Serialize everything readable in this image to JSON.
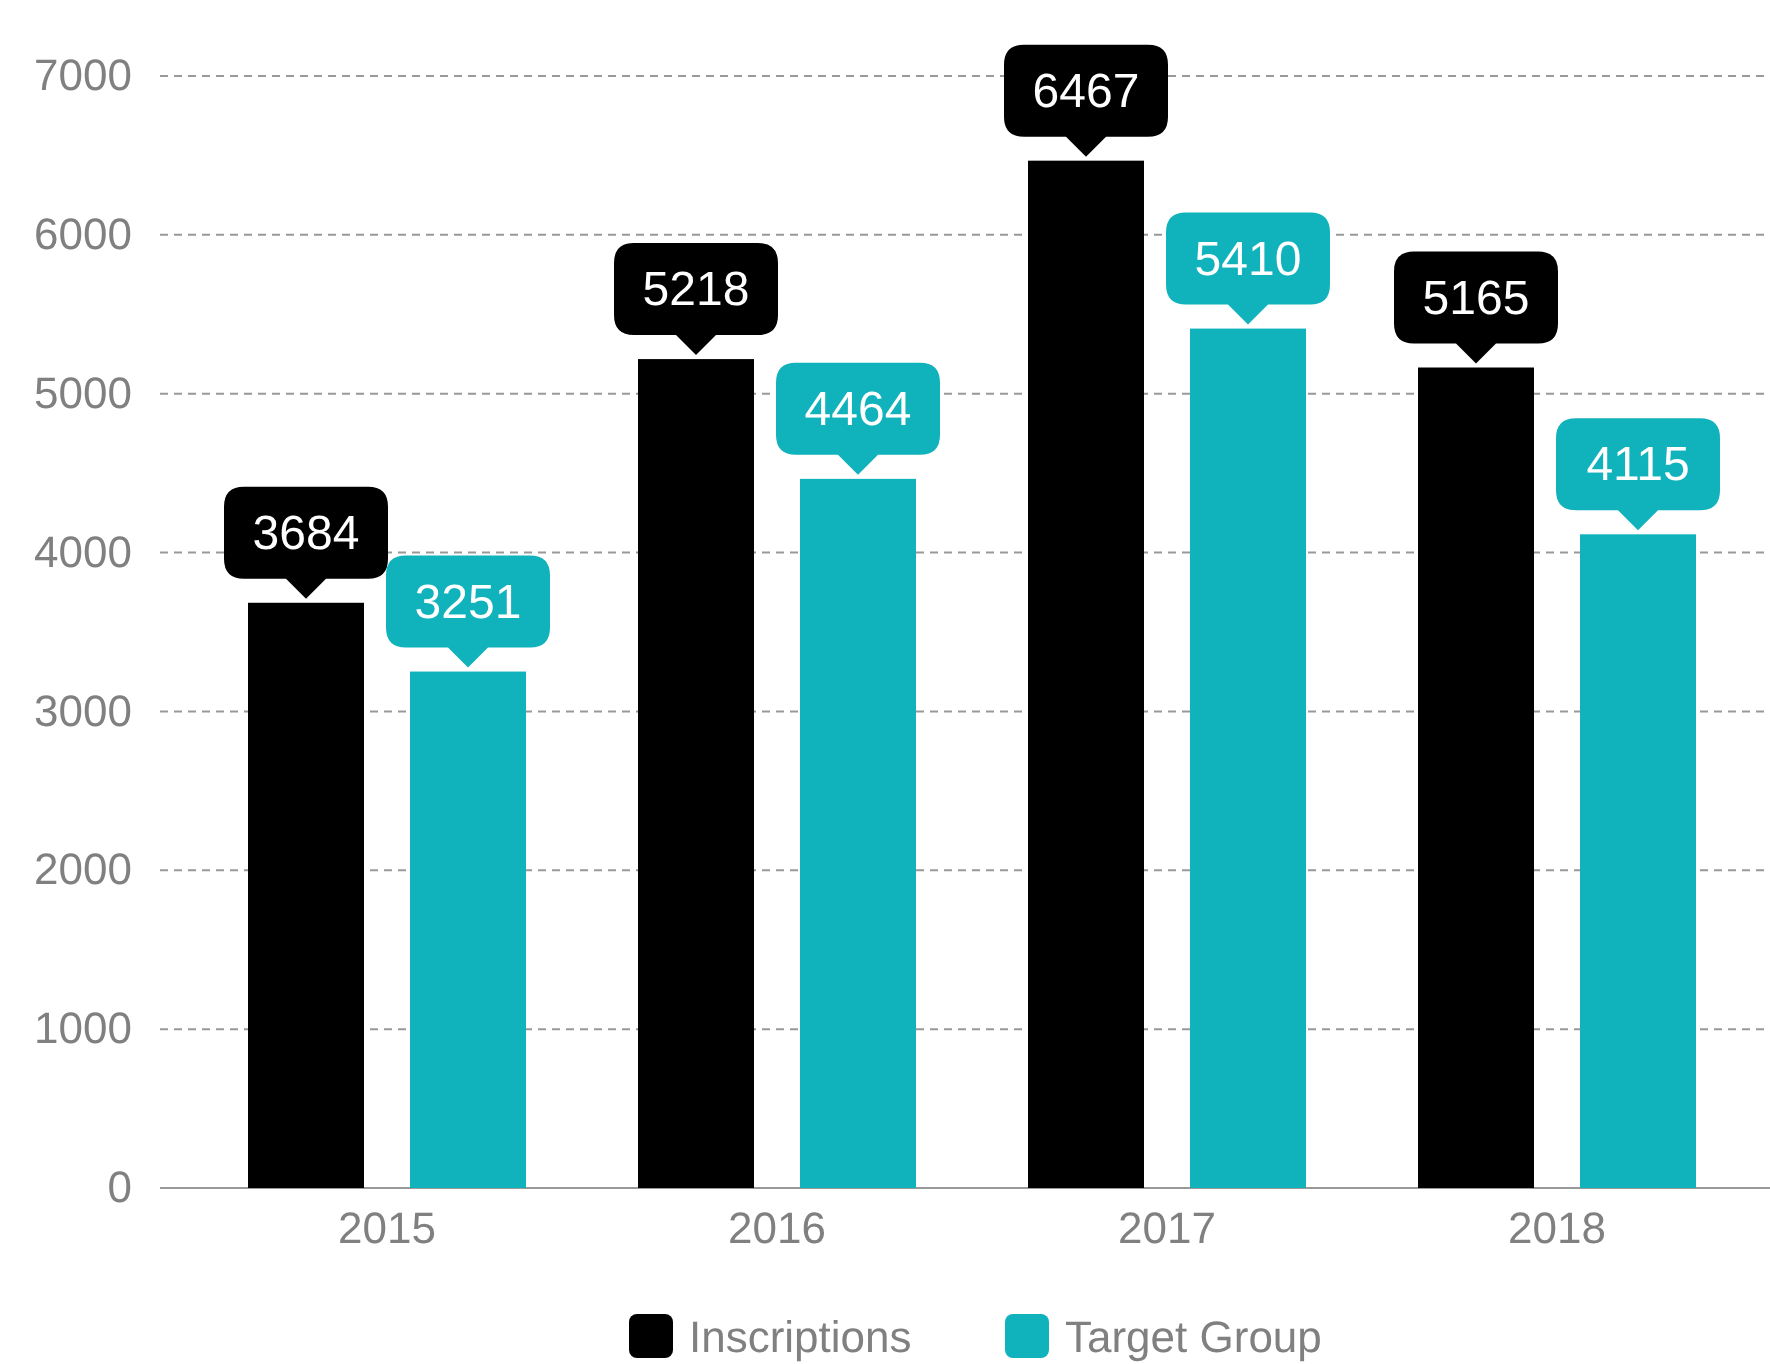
{
  "chart_data": {
    "type": "bar",
    "categories": [
      "2015",
      "2016",
      "2017",
      "2018"
    ],
    "series": [
      {
        "name": "Inscriptions",
        "color": "#000000",
        "values": [
          3684,
          5218,
          6467,
          5165
        ]
      },
      {
        "name": "Target Group",
        "color": "#10b2bb",
        "values": [
          3251,
          4464,
          5410,
          4115
        ]
      }
    ],
    "ylim": [
      0,
      7000
    ],
    "yticks": [
      0,
      1000,
      2000,
      3000,
      4000,
      5000,
      6000,
      7000
    ],
    "grid": "y",
    "legend": "bottom",
    "data_labels": true
  }
}
